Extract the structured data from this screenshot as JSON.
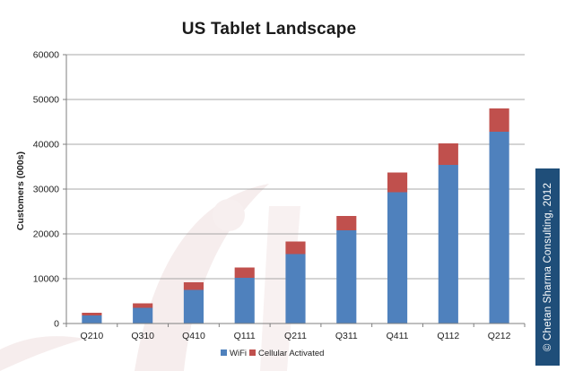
{
  "chart_data": {
    "type": "bar",
    "stacked": true,
    "title": "US Tablet Landscape",
    "xlabel": "",
    "ylabel": "Customers (000s)",
    "ylim": [
      0,
      60000
    ],
    "yticks": [
      0,
      10000,
      20000,
      30000,
      40000,
      50000,
      60000
    ],
    "grid": true,
    "legend_position": "bottom",
    "categories": [
      "Q210",
      "Q310",
      "Q410",
      "Q111",
      "Q211",
      "Q311",
      "Q411",
      "Q112",
      "Q212"
    ],
    "series": [
      {
        "name": "WiFi",
        "color": "#4f81bd",
        "values": [
          1800,
          3500,
          7500,
          10200,
          15500,
          20800,
          29300,
          35400,
          42800
        ]
      },
      {
        "name": "Cellular Activated",
        "color": "#c0504d",
        "values": [
          600,
          1000,
          1700,
          2300,
          2800,
          3200,
          4400,
          4800,
          5200
        ]
      }
    ]
  },
  "copyright": "© Chetan Sharma Consulting, 2012",
  "colors": {
    "axis": "#7f7f7f",
    "grid": "#8c8c8c",
    "text": "#222222",
    "band": "#1f4e79"
  }
}
